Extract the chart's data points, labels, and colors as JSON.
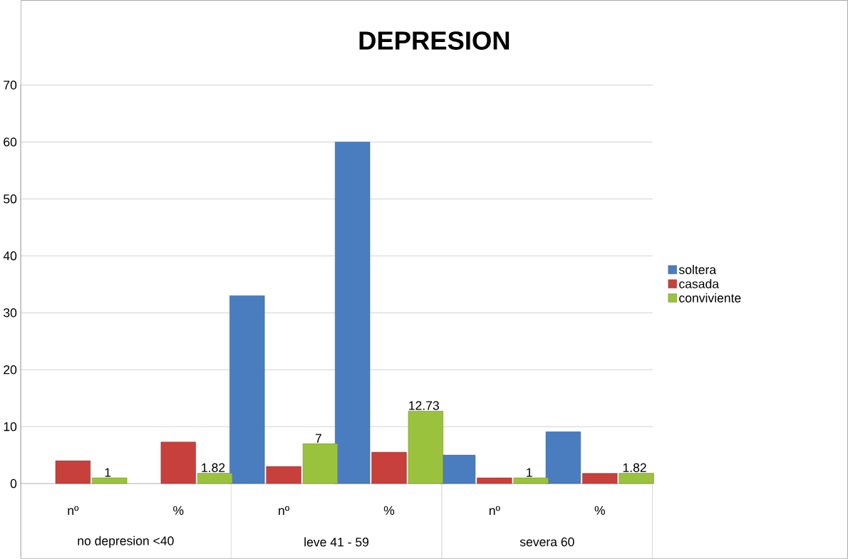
{
  "chart_data": {
    "type": "bar",
    "title": "DEPRESION",
    "categories": [
      "nº",
      "%",
      "nº",
      "%",
      "nº",
      "%"
    ],
    "annotations": [
      "no depresion <40",
      "leve 41 - 59",
      "severa 60"
    ],
    "series": [
      {
        "name": "soltera",
        "color": "#4a7dc0",
        "values": [
          null,
          null,
          33,
          60,
          5,
          9.1
        ]
      },
      {
        "name": "casada",
        "color": "#c8403c",
        "values": [
          4,
          7.3,
          3,
          5.5,
          1,
          1.8
        ]
      },
      {
        "name": "conviviente",
        "color": "#9bc23c",
        "values": [
          1,
          1.82,
          7,
          12.73,
          1,
          1.82
        ],
        "value_labels": [
          "1",
          "1.82",
          "7",
          "12.73",
          "1",
          "1.82"
        ]
      }
    ],
    "ylim": [
      0,
      70
    ],
    "yticks": [
      0,
      10,
      20,
      30,
      40,
      50,
      60,
      70
    ],
    "grid": "y",
    "legend": "right"
  }
}
